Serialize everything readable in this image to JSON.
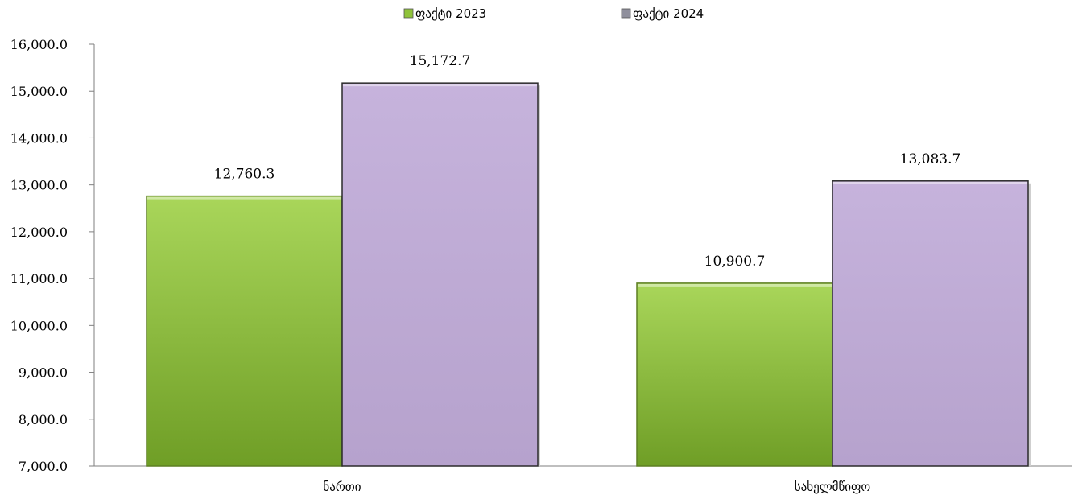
{
  "chart_data": {
    "type": "bar",
    "categories": [
      "ნართი",
      "სახელმწიფო"
    ],
    "series": [
      {
        "name": "ფაქტი 2023",
        "values": [
          12760.3,
          10900.7
        ],
        "labels": [
          "12,760.3",
          "10,900.7"
        ],
        "color": "#8fc33a"
      },
      {
        "name": "ფაქტი 2024",
        "values": [
          15172.7,
          13083.7
        ],
        "labels": [
          "15,172.7",
          "13,083.7"
        ],
        "color": "#bea9d4"
      }
    ],
    "ylim": [
      7000,
      16000
    ],
    "yticks": [
      7000,
      8000,
      9000,
      10000,
      11000,
      12000,
      13000,
      14000,
      15000,
      16000
    ],
    "ytick_labels": [
      "7,000.0",
      "8,000.0",
      "9,000.0",
      "10,000.0",
      "11,000.0",
      "12,000.0",
      "13,000.0",
      "14,000.0",
      "15,000.0",
      "16,000.0"
    ],
    "legend_position": "top",
    "grid": false
  }
}
